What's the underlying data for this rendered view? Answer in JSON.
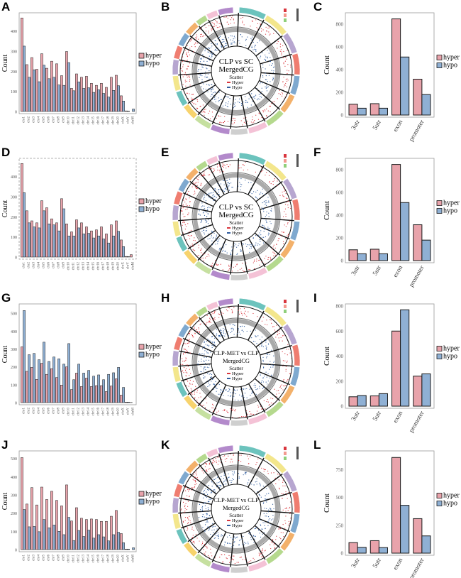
{
  "panel_letters": [
    "A",
    "B",
    "C",
    "D",
    "E",
    "F",
    "G",
    "H",
    "I",
    "J",
    "K",
    "L"
  ],
  "colors": {
    "hyper": "#e8a3ab",
    "hypo": "#8fb0d4",
    "outline": "#1a1a1a",
    "scatter_hyper": "#d9363e",
    "scatter_hypo": "#2f5c9e"
  },
  "chart_data": [
    {
      "panel": "A",
      "type": "bar",
      "ylabel": "Count",
      "legend": [
        "hyper",
        "hypo"
      ],
      "legend_position": "right",
      "ylim": [
        0,
        480
      ],
      "yticks": [
        0,
        100,
        200,
        300,
        400
      ],
      "categories": [
        "chr1",
        "chr2",
        "chr3",
        "chr4",
        "chr5",
        "chr6",
        "chr7",
        "chr8",
        "chr9",
        "chr10",
        "chr11",
        "chr12",
        "chr13",
        "chr14",
        "chr15",
        "chr16",
        "chr17",
        "chr18",
        "chr19",
        "chr20",
        "chrX",
        "chrY",
        "chrM"
      ],
      "series": [
        {
          "name": "hyper",
          "values": [
            465,
            233,
            268,
            210,
            287,
            215,
            250,
            237,
            178,
            298,
            115,
            187,
            170,
            175,
            140,
            130,
            140,
            120,
            170,
            180,
            78,
            3,
            0
          ]
        },
        {
          "name": "hypo",
          "values": [
            325,
            170,
            207,
            148,
            230,
            163,
            170,
            132,
            130,
            243,
            103,
            147,
            115,
            118,
            95,
            108,
            90,
            72,
            105,
            128,
            52,
            2,
            12
          ]
        }
      ]
    },
    {
      "panel": "C",
      "type": "bar",
      "ylabel": "Count",
      "legend": [
        "hyper",
        "hypo"
      ],
      "legend_position": "right",
      "ylim": [
        0,
        880
      ],
      "yticks": [
        0,
        200,
        400,
        600,
        800
      ],
      "categories": [
        "3utr",
        "5utr",
        "exon",
        "promoter"
      ],
      "series": [
        {
          "name": "hyper",
          "values": [
            95,
            100,
            845,
            315
          ]
        },
        {
          "name": "hypo",
          "values": [
            60,
            60,
            510,
            180
          ]
        }
      ]
    },
    {
      "panel": "D",
      "type": "bar",
      "ylabel": "Count",
      "legend": [
        "hyper",
        "hypo"
      ],
      "legend_position": "right",
      "ylim": [
        0,
        480
      ],
      "yticks": [
        0,
        100,
        200,
        300,
        400
      ],
      "categories": [
        "chr1",
        "chr2",
        "chr3",
        "chr4",
        "chr5",
        "chr6",
        "chr7",
        "chr8",
        "chr9",
        "chr10",
        "chr11",
        "chr12",
        "chr13",
        "chr14",
        "chr15",
        "chr16",
        "chr17",
        "chr18",
        "chr19",
        "chr20",
        "chrX",
        "chrY",
        "chrM"
      ],
      "series": [
        {
          "name": "hyper",
          "values": [
            465,
            230,
            180,
            170,
            280,
            245,
            190,
            170,
            290,
            165,
            125,
            185,
            170,
            150,
            130,
            135,
            150,
            115,
            160,
            180,
            85,
            3,
            12
          ]
        },
        {
          "name": "hypo",
          "values": [
            320,
            170,
            150,
            145,
            230,
            165,
            160,
            130,
            240,
            105,
            105,
            145,
            115,
            118,
            95,
            105,
            90,
            70,
            105,
            128,
            52,
            2,
            0
          ]
        }
      ]
    },
    {
      "panel": "F",
      "type": "bar",
      "ylabel": "Count",
      "legend": [
        "hyper",
        "hypo"
      ],
      "legend_position": "right",
      "ylim": [
        0,
        880
      ],
      "yticks": [
        0,
        200,
        400,
        600,
        800
      ],
      "categories": [
        "3utr",
        "5utr",
        "exon",
        "promoter"
      ],
      "series": [
        {
          "name": "hyper",
          "values": [
            95,
            100,
            845,
            315
          ]
        },
        {
          "name": "hypo",
          "values": [
            60,
            60,
            510,
            180
          ]
        }
      ]
    },
    {
      "panel": "G",
      "type": "bar",
      "ylabel": "Count",
      "legend": [
        "hyper",
        "hypo"
      ],
      "legend_position": "right",
      "ylim": [
        0,
        540
      ],
      "yticks": [
        0,
        100,
        200,
        300,
        400,
        500
      ],
      "categories": [
        "chr1",
        "chr2",
        "chr3",
        "chr4",
        "chr5",
        "chr6",
        "chr7",
        "chr8",
        "chr9",
        "chr10",
        "chr11",
        "chr12",
        "chr13",
        "chr14",
        "chr15",
        "chr16",
        "chr17",
        "chr18",
        "chr19",
        "chr20",
        "chrX",
        "chrY",
        "chrM"
      ],
      "series": [
        {
          "name": "hyper",
          "values": [
            312,
            175,
            197,
            130,
            220,
            158,
            190,
            140,
            98,
            200,
            73,
            165,
            90,
            137,
            90,
            95,
            95,
            62,
            93,
            133,
            42,
            3,
            1
          ]
        },
        {
          "name": "hypo",
          "values": [
            515,
            268,
            275,
            240,
            338,
            230,
            255,
            245,
            215,
            330,
            128,
            215,
            165,
            180,
            148,
            155,
            128,
            158,
            167,
            197,
            85,
            3,
            0
          ]
        }
      ]
    },
    {
      "panel": "I",
      "type": "bar",
      "ylabel": "Count",
      "legend": [
        "hyper",
        "hypo"
      ],
      "legend_position": "right",
      "ylim": [
        0,
        800
      ],
      "yticks": [
        0,
        200,
        400,
        600,
        800
      ],
      "categories": [
        "3utr",
        "5utr",
        "exon",
        "promoter"
      ],
      "series": [
        {
          "name": "hyper",
          "values": [
            75,
            82,
            600,
            240
          ]
        },
        {
          "name": "hypo",
          "values": [
            85,
            100,
            770,
            258
          ]
        }
      ]
    },
    {
      "panel": "J",
      "type": "bar",
      "ylabel": "Count",
      "legend": [
        "hyper",
        "hypo"
      ],
      "legend_position": "right",
      "ylim": [
        0,
        530
      ],
      "yticks": [
        0,
        100,
        200,
        300,
        400,
        500
      ],
      "categories": [
        "chr1",
        "chr2",
        "chr3",
        "chr4",
        "chr5",
        "chr6",
        "chr7",
        "chr8",
        "chr9",
        "chr10",
        "chr11",
        "chr12",
        "chr13",
        "chr14",
        "chr15",
        "chr16",
        "chr17",
        "chr18",
        "chr19",
        "chr20",
        "chrX",
        "chrY",
        "chrM"
      ],
      "series": [
        {
          "name": "hyper",
          "values": [
            505,
            250,
            340,
            245,
            343,
            275,
            320,
            270,
            240,
            355,
            157,
            230,
            172,
            165,
            168,
            165,
            155,
            155,
            183,
            215,
            88,
            3,
            0
          ]
        },
        {
          "name": "hypo",
          "values": [
            220,
            125,
            127,
            98,
            165,
            120,
            135,
            100,
            82,
            177,
            50,
            105,
            72,
            107,
            63,
            82,
            70,
            48,
            82,
            95,
            38,
            3,
            10
          ]
        }
      ]
    },
    {
      "panel": "L",
      "type": "bar",
      "ylabel": "Count",
      "legend": [
        "hyper",
        "hypo"
      ],
      "legend_position": "right",
      "ylim": [
        0,
        900
      ],
      "yticks": [
        0,
        250,
        500,
        750
      ],
      "categories": [
        "3utr",
        "5utr",
        "exon",
        "promoter"
      ],
      "series": [
        {
          "name": "hyper",
          "values": [
            95,
            112,
            860,
            310
          ]
        },
        {
          "name": "hypo",
          "values": [
            52,
            50,
            430,
            155
          ]
        }
      ]
    }
  ],
  "circos": [
    {
      "panel": "B",
      "title_line1": "CLP vs SC",
      "title_line2": "MergedCG",
      "legend_title": "Scatter",
      "legend_hyper": "Hyper",
      "legend_hypo": "Hypo"
    },
    {
      "panel": "E",
      "title_line1": "CLP vs SC",
      "title_line2": "MergedCG",
      "legend_title": "Scatter",
      "legend_hyper": "Hyper",
      "legend_hypo": "Hypo"
    },
    {
      "panel": "H",
      "title_line1": "CLP-MET vs CLP",
      "title_line2": "MergedCG",
      "legend_title": "Scatter",
      "legend_hyper": "Hyper",
      "legend_hypo": "Hypo"
    },
    {
      "panel": "K",
      "title_line1": "CLP-MET vs CLP",
      "title_line2": "MergedCG",
      "legend_title": "Scatter",
      "legend_hyper": "Hyper",
      "legend_hypo": "Hypo"
    }
  ],
  "circos_segment_colors": [
    "#6cc3bd",
    "#f3e68c",
    "#b7a6d0",
    "#ef7d70",
    "#7fa9cf",
    "#f3b16b",
    "#b5d98e",
    "#f4c2d6",
    "#cfcfcf",
    "#b38acb",
    "#c6e0a0",
    "#f7d36d",
    "#6cc3bd",
    "#f3e68c",
    "#b7a6d0",
    "#ef7d70",
    "#7fa9cf",
    "#f3b16b",
    "#b5d98e",
    "#f4c2d6",
    "#b38acb"
  ]
}
